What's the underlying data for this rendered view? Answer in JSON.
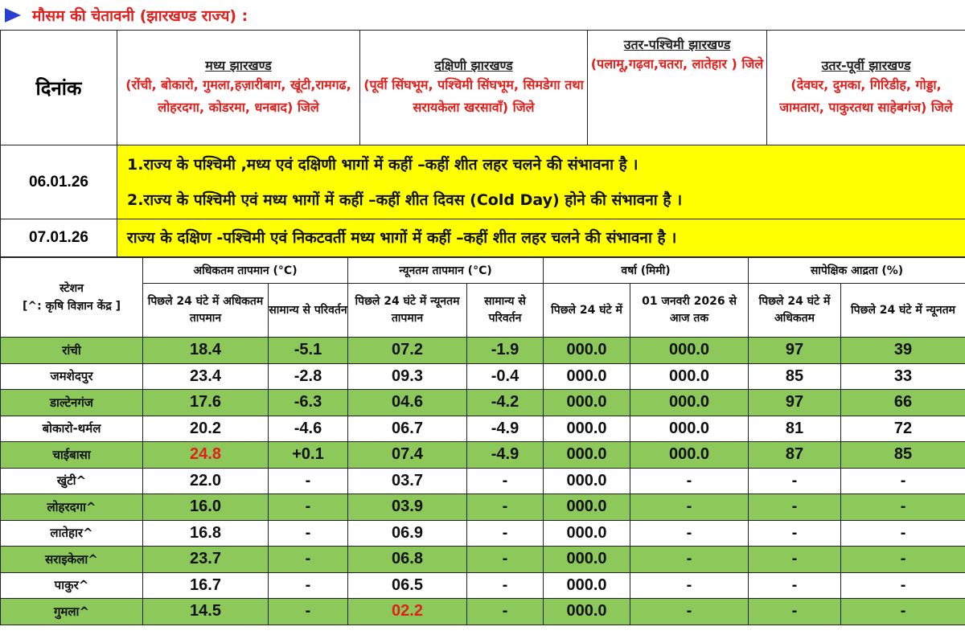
{
  "title": "मौसम की चेतावनी (झारखण्ड राज्य) :",
  "colors": {
    "title": "#e0201c",
    "arrow": "#2a3fd0",
    "highlight": "#ffff00",
    "green_row": "#8cc85a",
    "alert_value": "#e0201c"
  },
  "warning": {
    "date_header": "दिनांक",
    "regions": [
      {
        "name": "मध्य झारखण्ड",
        "districts": "(रोंची, बोकारो, गुमला,हज़ारीबाग, खूंटी,रामगढ, लोहरदगा, कोडरमा, धनबाद) जिले"
      },
      {
        "name": "दक्षिणी झारखण्ड",
        "districts": "(पूर्वी सिंघभूम, पश्चिमी सिंघभूम, सिमडेगा तथा सरायकेला खरसावाँ) जिले"
      },
      {
        "name": "उतर-पश्चिमी झारखण्ड",
        "districts": "(पलामू,गढ़वा,चतरा, लातेहार ) जिले"
      },
      {
        "name": "उतर-पूर्वी झारखण्ड",
        "districts": "(देवघर, दुमका, गिरिडीह, गोड्डा, जामतारा, पाकुरतथा साहेबगंज) जिले"
      }
    ],
    "days": [
      {
        "date": "06.01.26",
        "lines": [
          "1.राज्य के पश्चिमी ,मध्य एवं दक्षिणी भागों में कहीं –कहीं शीत लहर चलने की संभावना है ।",
          "2.राज्य के पश्चिमी एवं मध्य भागों में कहीं –कहीं शीत दिवस (Cold Day) होने की संभावना है ।"
        ]
      },
      {
        "date": "07.01.26",
        "lines": [
          "राज्य के दक्षिण -पश्चिमी एवं निकटवर्ती मध्य भागों में कहीं –कहीं शीत लहर चलने की संभावना है ।"
        ]
      }
    ]
  },
  "observations": {
    "station_header": "स्टेशन\n[^: कृषि विज्ञान केंद्र ]",
    "groups": [
      "अधिकतम तापमान (°C)",
      "न्यूनतम तापमान (°C)",
      "वर्षा (मिमी)",
      "सापेक्षिक आद्रता (%)"
    ],
    "subheaders": [
      "पिछले 24 घंटे में अधिकतम तापमान",
      "सामान्य से परिवर्तन",
      "पिछले 24 घंटे में न्यूनतम तापमान",
      "सामान्य से परिवर्तन",
      "पिछले 24 घंटे में",
      "01 जनवरी 2026 से आज तक",
      "पिछले 24 घंटे में अधिकतम",
      "पिछले 24 घंटे में न्यूनतम"
    ],
    "rows": [
      {
        "station": "रांची",
        "values": [
          "18.4",
          "-5.1",
          "07.2",
          "-1.9",
          "000.0",
          "000.0",
          "97",
          "39"
        ],
        "green": true,
        "red": []
      },
      {
        "station": "जमशेदपुर",
        "values": [
          "23.4",
          "-2.8",
          "09.3",
          "-0.4",
          "000.0",
          "000.0",
          "85",
          "33"
        ],
        "green": false,
        "red": []
      },
      {
        "station": "डाल्टेनगंज",
        "values": [
          "17.6",
          "-6.3",
          "04.6",
          "-4.2",
          "000.0",
          "000.0",
          "97",
          "66"
        ],
        "green": true,
        "red": []
      },
      {
        "station": "बोकारो-थर्मल",
        "values": [
          "20.2",
          "-4.6",
          "06.7",
          "-4.9",
          "000.0",
          "000.0",
          "81",
          "72"
        ],
        "green": false,
        "red": []
      },
      {
        "station": "चाईबासा",
        "values": [
          "24.8",
          "+0.1",
          "07.4",
          "-4.9",
          "000.0",
          "000.0",
          "87",
          "85"
        ],
        "green": true,
        "red": [
          0
        ]
      },
      {
        "station": "खुंटी^",
        "values": [
          "22.0",
          "-",
          "03.7",
          "-",
          "000.0",
          "-",
          "-",
          "-"
        ],
        "green": false,
        "red": []
      },
      {
        "station": "लोहरदगा^",
        "values": [
          "16.0",
          "-",
          "03.9",
          "-",
          "000.0",
          "-",
          "-",
          "-"
        ],
        "green": true,
        "red": []
      },
      {
        "station": "लातेहार^",
        "values": [
          "16.8",
          "-",
          "06.9",
          "-",
          "000.0",
          "-",
          "-",
          "-"
        ],
        "green": false,
        "red": []
      },
      {
        "station": "सराइकेला^",
        "values": [
          "23.7",
          "-",
          "06.8",
          "-",
          "000.0",
          "-",
          "-",
          "-"
        ],
        "green": true,
        "red": []
      },
      {
        "station": "पाकुर^",
        "values": [
          "16.7",
          "-",
          "06.5",
          "-",
          "000.0",
          "-",
          "-",
          "-"
        ],
        "green": false,
        "red": []
      },
      {
        "station": "गुमला^",
        "values": [
          "14.5",
          "-",
          "02.2",
          "-",
          "000.0",
          "-",
          "-",
          "-"
        ],
        "green": true,
        "red": [
          2
        ]
      }
    ]
  }
}
